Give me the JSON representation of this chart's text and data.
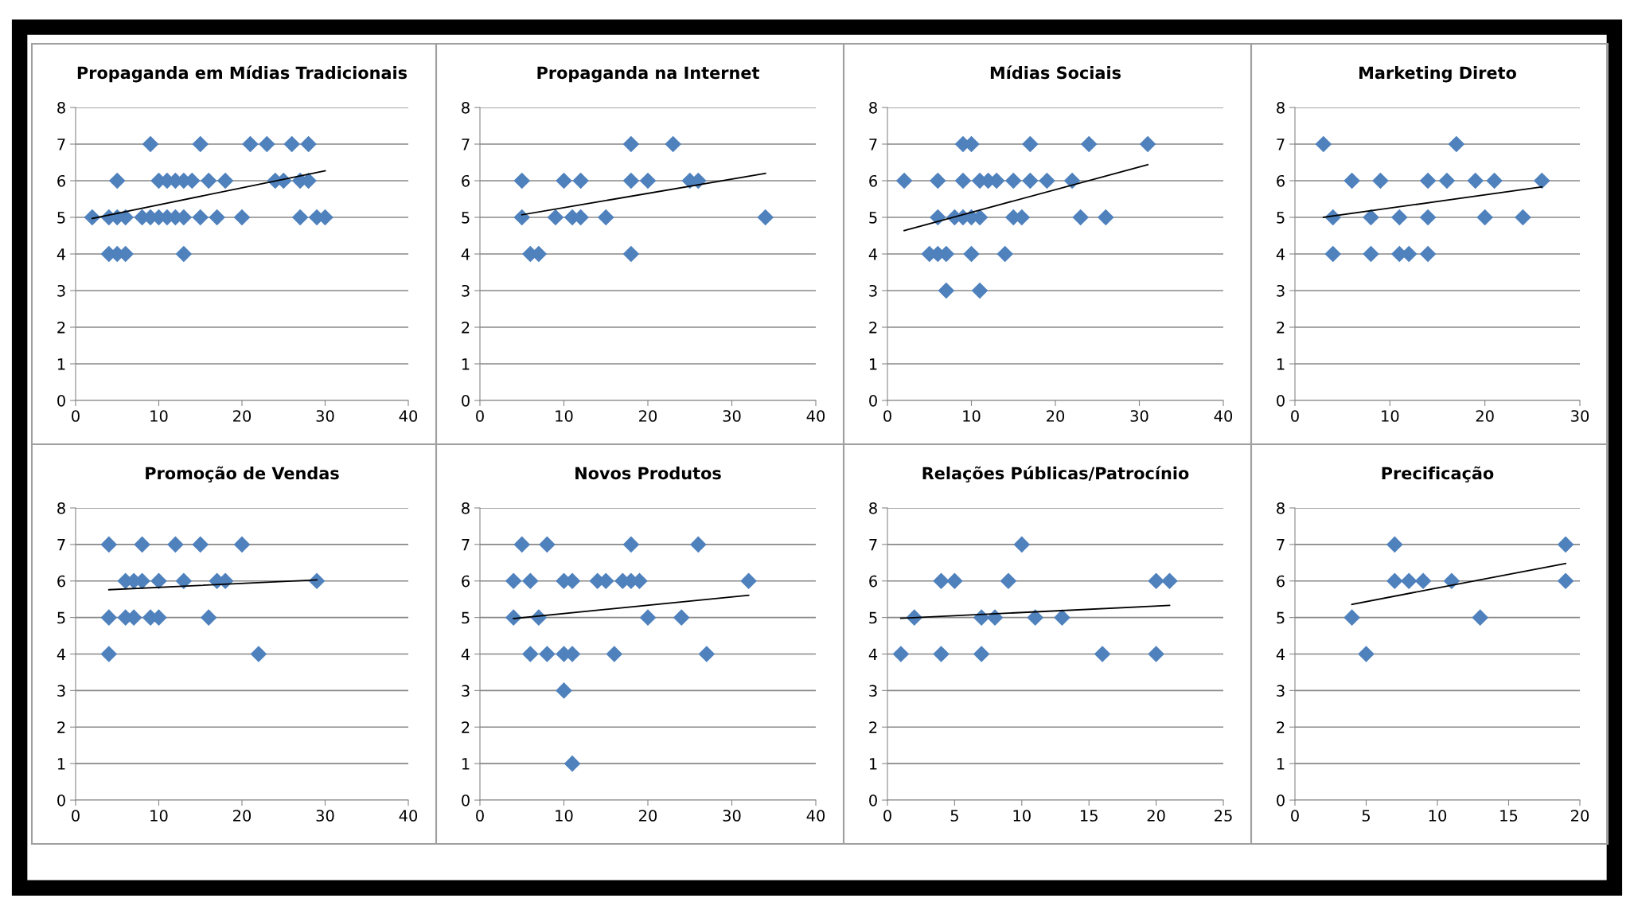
{
  "chart_data": [
    {
      "type": "scatter",
      "title": "Propaganda em Mídias Tradicionais",
      "marker": "diamond",
      "grid": "y",
      "xlim": [
        0,
        40
      ],
      "xticks": [
        0,
        10,
        20,
        30,
        40
      ],
      "ylim": [
        0,
        8
      ],
      "yticks": [
        0,
        1,
        2,
        3,
        4,
        5,
        6,
        7,
        8
      ],
      "series": [
        {
          "color": "#4f81bd",
          "x": [
            9,
            15,
            21,
            23,
            26,
            28,
            5,
            10,
            11,
            12,
            13,
            14,
            16,
            18,
            24,
            25,
            27,
            28,
            2,
            4,
            5,
            6,
            8,
            9,
            10,
            11,
            12,
            13,
            15,
            17,
            20,
            27,
            29,
            30,
            4,
            5,
            6,
            13
          ],
          "values": [
            7,
            7,
            7,
            7,
            7,
            7,
            6,
            6,
            6,
            6,
            6,
            6,
            6,
            6,
            6,
            6,
            6,
            6,
            5,
            5,
            5,
            5,
            5,
            5,
            5,
            5,
            5,
            5,
            5,
            5,
            5,
            5,
            5,
            5,
            4,
            4,
            4,
            4
          ]
        },
        {
          "type": "line",
          "color": "#000000",
          "marker": "none",
          "x": [
            2,
            30
          ],
          "values": [
            4.97,
            6.27
          ]
        }
      ]
    },
    {
      "type": "scatter",
      "title": "Propaganda na Internet",
      "marker": "diamond",
      "grid": "y",
      "xlim": [
        0,
        40
      ],
      "xticks": [
        0,
        10,
        20,
        30,
        40
      ],
      "ylim": [
        0,
        8
      ],
      "yticks": [
        0,
        1,
        2,
        3,
        4,
        5,
        6,
        7,
        8
      ],
      "series": [
        {
          "color": "#4f81bd",
          "x": [
            18,
            23,
            5,
            10,
            12,
            18,
            20,
            25,
            26,
            5,
            9,
            11,
            12,
            15,
            34,
            6,
            7,
            18
          ],
          "values": [
            7,
            7,
            6,
            6,
            6,
            6,
            6,
            6,
            6,
            5,
            5,
            5,
            5,
            5,
            5,
            4,
            4,
            4
          ]
        },
        {
          "type": "line",
          "color": "#000000",
          "marker": "none",
          "x": [
            5,
            34
          ],
          "values": [
            5.07,
            6.2
          ]
        }
      ]
    },
    {
      "type": "scatter",
      "title": "Mídias Sociais",
      "marker": "diamond",
      "grid": "y",
      "xlim": [
        0,
        40
      ],
      "xticks": [
        0,
        10,
        20,
        30,
        40
      ],
      "ylim": [
        0,
        8
      ],
      "yticks": [
        0,
        1,
        2,
        3,
        4,
        5,
        6,
        7,
        8
      ],
      "series": [
        {
          "color": "#4f81bd",
          "x": [
            9,
            10,
            17,
            24,
            31,
            2,
            6,
            9,
            11,
            12,
            13,
            15,
            17,
            19,
            22,
            6,
            8,
            9,
            10,
            11,
            15,
            16,
            23,
            26,
            5,
            6,
            7,
            10,
            14,
            7,
            11
          ],
          "values": [
            7,
            7,
            7,
            7,
            7,
            6,
            6,
            6,
            6,
            6,
            6,
            6,
            6,
            6,
            6,
            5,
            5,
            5,
            5,
            5,
            5,
            5,
            5,
            5,
            4,
            4,
            4,
            4,
            4,
            3,
            3
          ]
        },
        {
          "type": "line",
          "color": "#000000",
          "marker": "none",
          "x": [
            2,
            31
          ],
          "values": [
            4.64,
            6.44
          ]
        }
      ]
    },
    {
      "type": "scatter",
      "title": "Marketing Direto",
      "marker": "diamond",
      "grid": "y",
      "xlim": [
        0,
        30
      ],
      "xticks": [
        0,
        10,
        20,
        30
      ],
      "ylim": [
        0,
        8
      ],
      "yticks": [
        0,
        1,
        2,
        3,
        4,
        5,
        6,
        7,
        8
      ],
      "series": [
        {
          "color": "#4f81bd",
          "x": [
            3,
            17,
            6,
            9,
            14,
            16,
            19,
            21,
            26,
            4,
            8,
            11,
            14,
            20,
            24,
            4,
            8,
            11,
            12,
            14
          ],
          "values": [
            7,
            7,
            6,
            6,
            6,
            6,
            6,
            6,
            6,
            5,
            5,
            5,
            5,
            5,
            5,
            4,
            4,
            4,
            4,
            4
          ]
        },
        {
          "type": "line",
          "color": "#000000",
          "marker": "none",
          "x": [
            3,
            26
          ],
          "values": [
            5.0,
            5.83
          ]
        }
      ]
    },
    {
      "type": "scatter",
      "title": "Promoção de Vendas",
      "marker": "diamond",
      "grid": "y",
      "xlim": [
        0,
        40
      ],
      "xticks": [
        0,
        10,
        20,
        30,
        40
      ],
      "ylim": [
        0,
        8
      ],
      "yticks": [
        0,
        1,
        2,
        3,
        4,
        5,
        6,
        7,
        8
      ],
      "series": [
        {
          "color": "#4f81bd",
          "x": [
            4,
            8,
            12,
            15,
            20,
            6,
            7,
            8,
            10,
            13,
            17,
            18,
            29,
            4,
            6,
            7,
            9,
            10,
            16,
            4,
            22
          ],
          "values": [
            7,
            7,
            7,
            7,
            7,
            6,
            6,
            6,
            6,
            6,
            6,
            6,
            6,
            5,
            5,
            5,
            5,
            5,
            5,
            4,
            4
          ]
        },
        {
          "type": "line",
          "color": "#000000",
          "marker": "none",
          "x": [
            4,
            29
          ],
          "values": [
            5.76,
            6.03
          ]
        }
      ]
    },
    {
      "type": "scatter",
      "title": "Novos Produtos",
      "marker": "diamond",
      "grid": "y",
      "xlim": [
        0,
        40
      ],
      "xticks": [
        0,
        10,
        20,
        30,
        40
      ],
      "ylim": [
        0,
        8
      ],
      "yticks": [
        0,
        1,
        2,
        3,
        4,
        5,
        6,
        7,
        8
      ],
      "series": [
        {
          "color": "#4f81bd",
          "x": [
            5,
            8,
            18,
            26,
            4,
            6,
            10,
            11,
            14,
            15,
            17,
            18,
            19,
            32,
            4,
            7,
            20,
            24,
            6,
            8,
            10,
            11,
            16,
            27,
            10,
            11
          ],
          "values": [
            7,
            7,
            7,
            7,
            6,
            6,
            6,
            6,
            6,
            6,
            6,
            6,
            6,
            6,
            5,
            5,
            5,
            5,
            4,
            4,
            4,
            4,
            4,
            4,
            3,
            1
          ]
        },
        {
          "type": "line",
          "color": "#000000",
          "marker": "none",
          "x": [
            4,
            32
          ],
          "values": [
            4.97,
            5.61
          ]
        }
      ]
    },
    {
      "type": "scatter",
      "title": "Relações Públicas/Patrocínio",
      "marker": "diamond",
      "grid": "y",
      "xlim": [
        0,
        25
      ],
      "xticks": [
        0,
        5,
        10,
        15,
        20,
        25
      ],
      "ylim": [
        0,
        8
      ],
      "yticks": [
        0,
        1,
        2,
        3,
        4,
        5,
        6,
        7,
        8
      ],
      "series": [
        {
          "color": "#4f81bd",
          "x": [
            10,
            4,
            5,
            9,
            20,
            21,
            2,
            7,
            8,
            11,
            13,
            1,
            4,
            7,
            16,
            20
          ],
          "values": [
            7,
            6,
            6,
            6,
            6,
            6,
            5,
            5,
            5,
            5,
            5,
            4,
            4,
            4,
            4,
            4
          ]
        },
        {
          "type": "line",
          "color": "#000000",
          "marker": "none",
          "x": [
            1,
            21
          ],
          "values": [
            4.98,
            5.33
          ]
        }
      ]
    },
    {
      "type": "scatter",
      "title": "Precificação",
      "marker": "diamond",
      "grid": "y",
      "xlim": [
        0,
        20
      ],
      "xticks": [
        0,
        5,
        10,
        15,
        20
      ],
      "ylim": [
        0,
        8
      ],
      "yticks": [
        0,
        1,
        2,
        3,
        4,
        5,
        6,
        7,
        8
      ],
      "series": [
        {
          "color": "#4f81bd",
          "x": [
            7,
            19,
            7,
            8,
            9,
            11,
            19,
            4,
            13,
            5
          ],
          "values": [
            7,
            7,
            6,
            6,
            6,
            6,
            6,
            5,
            5,
            4
          ]
        },
        {
          "type": "line",
          "color": "#000000",
          "marker": "none",
          "x": [
            4,
            19
          ],
          "values": [
            5.36,
            6.48
          ]
        }
      ]
    }
  ]
}
